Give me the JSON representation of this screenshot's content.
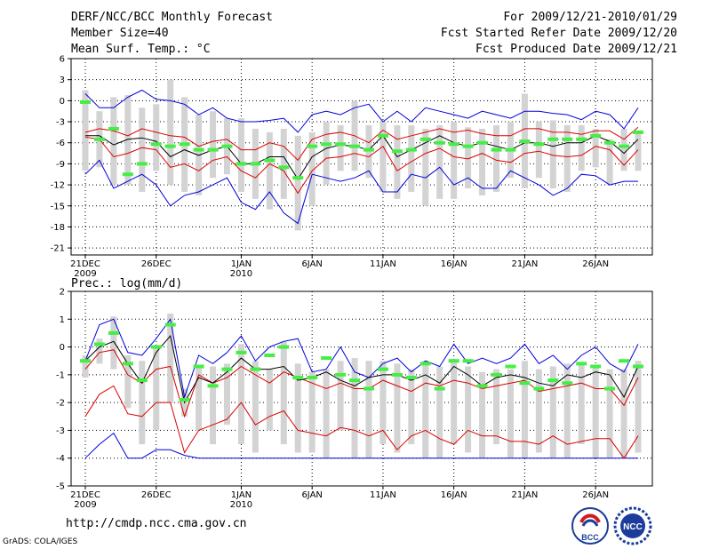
{
  "header": {
    "title": "DERF/NCC/BCC Monthly Forecast",
    "member_size": "Member Size=40",
    "variable": "Mean Surf. Temp.: °C",
    "forecast_period": "For 2009/12/21-2010/01/29",
    "start_date": "Fcst Started Refer Date 2009/12/20",
    "produced_date": "Fcst Produced Date 2009/12/21"
  },
  "footer": {
    "url": "http://cmdp.ncc.cma.gov.cn",
    "grads_credit": "GrADS: COLA/IGES",
    "logo_left_text": "BCC",
    "logo_right_text": "NCC"
  },
  "colors": {
    "box": "#d3d3d3",
    "envelope": "#0000dd",
    "spread": "#dd0000",
    "mean": "#000000",
    "observed": "#44ee44"
  },
  "chart_data": [
    {
      "type": "box-ensemble",
      "title": "",
      "ylabel": "Mean Surf. Temp.: °C",
      "ylim": [
        -22,
        6
      ],
      "yticks": [
        "6",
        "3",
        "0",
        "-3",
        "-6",
        "-9",
        "-12",
        "-15",
        "-18",
        "-21"
      ],
      "ytick_values": [
        6,
        3,
        0,
        -3,
        -6,
        -9,
        -12,
        -15,
        -18,
        -21
      ],
      "xtick_labels": [
        {
          "label": "21DEC",
          "sub": "2009",
          "day": 1
        },
        {
          "label": "26DEC",
          "sub": "",
          "day": 6
        },
        {
          "label": "1JAN",
          "sub": "2010",
          "day": 12
        },
        {
          "label": "6JAN",
          "sub": "",
          "day": 17
        },
        {
          "label": "11JAN",
          "sub": "",
          "day": 22
        },
        {
          "label": "16JAN",
          "sub": "",
          "day": 27
        },
        {
          "label": "21JAN",
          "sub": "",
          "day": 32
        },
        {
          "label": "26JAN",
          "sub": "",
          "day": 37
        }
      ],
      "days": 40,
      "max": [
        1.0,
        -1.0,
        -1.0,
        0.5,
        1.5,
        0.2,
        0.0,
        -0.5,
        -2.0,
        -1.0,
        -2.5,
        -3.0,
        -3.0,
        -2.8,
        -2.5,
        -4.5,
        -2.0,
        -1.5,
        -2.0,
        -1.0,
        -0.5,
        -3.0,
        -1.5,
        -3.0,
        -1.0,
        -1.5,
        -2.0,
        -2.5,
        -1.5,
        -2.0,
        -2.5,
        -1.5,
        -1.5,
        -1.8,
        -2.0,
        -2.7,
        -1.5,
        -2.0,
        -4.0,
        -1.0
      ],
      "box_hi": [
        1.5,
        -1.5,
        0.5,
        0.8,
        -1.0,
        -0.5,
        3.0,
        0.5,
        -2.0,
        -1.5,
        -2.5,
        -2.5,
        -4.0,
        -4.5,
        -4.0,
        -5.0,
        -4.5,
        -3.0,
        -3.5,
        0.0,
        -3.5,
        -3.0,
        -3.5,
        -3.5,
        -4.0,
        -3.5,
        -3.0,
        -3.8,
        -4.0,
        -3.5,
        -3.0,
        1.0,
        -3.0,
        -2.8,
        -3.5,
        -3.5,
        -4.0,
        -5.5,
        -4.0,
        -4.5
      ],
      "p75": [
        -4.5,
        -4.0,
        -4.3,
        -5.0,
        -4.0,
        -4.5,
        -5.0,
        -5.2,
        -6.5,
        -5.8,
        -5.5,
        -7.0,
        -7.0,
        -6.0,
        -6.5,
        -8.5,
        -5.5,
        -4.8,
        -4.5,
        -5.0,
        -6.0,
        -4.2,
        -5.5,
        -5.0,
        -4.5,
        -4.0,
        -4.5,
        -4.2,
        -4.7,
        -5.0,
        -5.0,
        -4.0,
        -4.0,
        -4.5,
        -4.5,
        -4.8,
        -4.3,
        -4.3,
        -5.5,
        -3.8
      ],
      "mean": [
        -5.0,
        -5.0,
        -6.3,
        -5.5,
        -5.3,
        -5.8,
        -8.0,
        -7.0,
        -7.8,
        -7.0,
        -6.5,
        -9.0,
        -9.0,
        -8.0,
        -8.0,
        -11.2,
        -8.0,
        -6.8,
        -6.3,
        -6.5,
        -7.0,
        -5.0,
        -8.0,
        -7.0,
        -6.0,
        -5.0,
        -6.0,
        -6.5,
        -6.0,
        -6.5,
        -7.0,
        -6.0,
        -6.0,
        -6.5,
        -6.0,
        -6.0,
        -5.0,
        -5.8,
        -7.5,
        -5.5
      ],
      "p25": [
        -5.2,
        -5.5,
        -8.0,
        -7.5,
        -6.7,
        -7.0,
        -9.5,
        -9.0,
        -10.0,
        -8.5,
        -8.0,
        -10.0,
        -11.0,
        -9.0,
        -10.0,
        -13.2,
        -10.0,
        -8.2,
        -8.0,
        -7.5,
        -8.0,
        -6.5,
        -10.0,
        -8.7,
        -7.5,
        -6.8,
        -8.0,
        -8.3,
        -7.5,
        -8.5,
        -8.8,
        -7.5,
        -7.2,
        -7.8,
        -8.0,
        -7.8,
        -6.5,
        -7.0,
        -9.2,
        -7.0
      ],
      "box_lo": [
        -10.0,
        -9.5,
        -12.0,
        -12.0,
        -13.0,
        -10.0,
        -12.0,
        -13.0,
        -13.5,
        -11.0,
        -10.5,
        -13.0,
        -14.0,
        -15.5,
        -14.0,
        -18.5,
        -15.0,
        -12.0,
        -10.0,
        -10.0,
        -11.0,
        -13.0,
        -14.0,
        -13.0,
        -15.0,
        -14.0,
        -14.0,
        -12.5,
        -13.5,
        -13.0,
        -11.0,
        -12.5,
        -11.0,
        -12.5,
        -13.0,
        -10.0,
        -9.5,
        -12.0,
        -10.0,
        -10.0
      ],
      "min": [
        -10.5,
        -8.5,
        -12.5,
        -11.5,
        -10.5,
        -12.0,
        -15.0,
        -13.5,
        -13.0,
        -12.0,
        -11.0,
        -14.5,
        -15.5,
        -13.0,
        -16.0,
        -17.5,
        -10.5,
        -11.0,
        -11.5,
        -11.0,
        -10.0,
        -13.0,
        -13.0,
        -10.5,
        -11.0,
        -9.5,
        -12.0,
        -11.0,
        -12.5,
        -12.5,
        -10.0,
        -11.0,
        -12.0,
        -13.5,
        -12.5,
        -10.5,
        -10.7,
        -12.0,
        -11.5,
        -11.5
      ],
      "observed": [
        -0.2,
        -5.5,
        -4.0,
        -10.5,
        -9.0,
        -6.2,
        -6.5,
        -6.2,
        -7.0,
        -7.0,
        -6.5,
        -9.0,
        -9.0,
        -8.5,
        -9.5,
        -11.0,
        -6.5,
        -6.2,
        -6.2,
        -6.5,
        -7.0,
        -5.0,
        -7.2,
        -7.0,
        -5.5,
        -6.0,
        -6.2,
        -6.5,
        -6.0,
        -7.0,
        -7.0,
        -5.8,
        -6.2,
        -5.5,
        -5.5,
        -5.5,
        -5.0,
        -6.0,
        -6.5,
        -4.5
      ],
      "observed_days": [
        1,
        2,
        3,
        4,
        5,
        6,
        7,
        8,
        9,
        10,
        11,
        12,
        13,
        14,
        15,
        16,
        17,
        18,
        19,
        20,
        21,
        22,
        23,
        24,
        25,
        26,
        27,
        28,
        29,
        30,
        31,
        32,
        33,
        34,
        35,
        36,
        37,
        38,
        39,
        40
      ]
    },
    {
      "type": "box-ensemble",
      "title": "",
      "ylabel": "Prec.: log(mm/d)",
      "ylim": [
        -5,
        2
      ],
      "yticks": [
        "2",
        "1",
        "0",
        "-1",
        "-2",
        "-3",
        "-4",
        "-5"
      ],
      "ytick_values": [
        2,
        1,
        0,
        -1,
        -2,
        -3,
        -4,
        -5
      ],
      "xtick_labels": [
        {
          "label": "21DEC",
          "sub": "2009",
          "day": 1
        },
        {
          "label": "26DEC",
          "sub": "",
          "day": 6
        },
        {
          "label": "1JAN",
          "sub": "2010",
          "day": 12
        },
        {
          "label": "6JAN",
          "sub": "",
          "day": 17
        },
        {
          "label": "11JAN",
          "sub": "",
          "day": 22
        },
        {
          "label": "16JAN",
          "sub": "",
          "day": 27
        },
        {
          "label": "21JAN",
          "sub": "",
          "day": 32
        },
        {
          "label": "26JAN",
          "sub": "",
          "day": 37
        }
      ],
      "days": 40,
      "max": [
        -0.5,
        0.8,
        1.0,
        -0.2,
        -0.3,
        0.3,
        1.0,
        -1.8,
        -0.3,
        -0.6,
        -0.2,
        0.4,
        -0.5,
        0.0,
        0.2,
        0.3,
        -0.9,
        -0.8,
        0.0,
        -0.9,
        -1.1,
        -0.6,
        -0.4,
        -0.9,
        -0.5,
        -0.7,
        0.1,
        -0.6,
        -0.4,
        -0.6,
        -0.4,
        0.1,
        -0.6,
        -0.3,
        -0.8,
        -0.3,
        0.0,
        -0.6,
        -0.9,
        0.1
      ],
      "box_hi": [
        -0.3,
        0.3,
        1.1,
        -0.3,
        -0.5,
        0.0,
        1.2,
        -1.5,
        -0.7,
        -0.7,
        -0.6,
        0.1,
        -0.5,
        -0.8,
        0.2,
        -0.6,
        -0.9,
        -0.8,
        -0.5,
        -0.4,
        -0.5,
        -0.5,
        -0.6,
        -0.8,
        -0.5,
        -0.7,
        -0.5,
        -0.7,
        -0.9,
        -0.8,
        -0.8,
        -0.5,
        -0.8,
        -0.7,
        -0.6,
        -0.6,
        -0.7,
        -0.8,
        -0.8,
        -0.5
      ],
      "p75": [
        -0.8,
        -0.2,
        -0.1,
        -1.0,
        -1.3,
        -0.8,
        -0.7,
        -2.5,
        -1.0,
        -1.3,
        -1.1,
        -0.7,
        -1.0,
        -1.3,
        -0.9,
        -1.1,
        -1.3,
        -1.5,
        -1.3,
        -1.5,
        -1.5,
        -1.2,
        -1.4,
        -1.6,
        -1.3,
        -1.4,
        -1.2,
        -1.3,
        -1.5,
        -1.4,
        -1.3,
        -1.2,
        -1.6,
        -1.5,
        -1.4,
        -1.3,
        -1.5,
        -1.5,
        -2.1,
        -1.1
      ],
      "mean": [
        -0.5,
        0.0,
        0.2,
        -0.6,
        -1.3,
        -0.2,
        0.4,
        -2.0,
        -1.1,
        -1.3,
        -0.9,
        -0.4,
        -0.8,
        -0.8,
        -0.7,
        -1.2,
        -1.1,
        -0.9,
        -1.2,
        -1.4,
        -1.1,
        -1.0,
        -1.0,
        -1.2,
        -1.0,
        -1.3,
        -0.7,
        -1.0,
        -1.4,
        -1.1,
        -1.0,
        -1.1,
        -1.3,
        -1.4,
        -1.0,
        -1.1,
        -0.9,
        -1.0,
        -1.8,
        -0.7
      ],
      "p25": [
        -2.5,
        -1.7,
        -1.4,
        -2.4,
        -2.5,
        -2.0,
        -2.0,
        -3.8,
        -3.0,
        -2.8,
        -2.6,
        -2.0,
        -2.8,
        -2.5,
        -2.3,
        -3.0,
        -3.1,
        -3.2,
        -2.9,
        -3.0,
        -3.2,
        -3.0,
        -3.7,
        -3.2,
        -3.0,
        -3.3,
        -3.5,
        -3.0,
        -3.2,
        -3.2,
        -3.4,
        -3.4,
        -3.5,
        -3.2,
        -3.5,
        -3.4,
        -3.3,
        -3.3,
        -4.0,
        -3.2
      ],
      "box_lo": [
        -1.1,
        -0.6,
        -0.8,
        -2.2,
        -3.5,
        -3.0,
        -2.0,
        -2.5,
        -3.0,
        -3.5,
        -2.8,
        -3.5,
        -3.8,
        -3.0,
        -3.5,
        -3.8,
        -3.8,
        -4.0,
        -3.0,
        -4.0,
        -4.0,
        -3.5,
        -3.8,
        -3.5,
        -4.0,
        -4.0,
        -3.5,
        -3.8,
        -4.0,
        -3.5,
        -4.0,
        -4.0,
        -3.8,
        -4.0,
        -4.0,
        -3.5,
        -4.0,
        -4.0,
        -4.0,
        -3.8
      ],
      "min": [
        -4.0,
        -3.5,
        -3.1,
        -4.0,
        -4.0,
        -3.7,
        -3.7,
        -3.9,
        -4.0,
        -4.0,
        -4.0,
        -4.0,
        -4.0,
        -4.0,
        -4.0,
        -4.0,
        -4.0,
        -4.0,
        -4.0,
        -4.0,
        -4.0,
        -4.0,
        -4.0,
        -4.0,
        -4.0,
        -4.0,
        -4.0,
        -4.0,
        -4.0,
        -4.0,
        -4.0,
        -4.0,
        -4.0,
        -4.0,
        -4.0,
        -4.0,
        -4.0,
        -4.0,
        -4.0,
        -4.0
      ],
      "observed": [
        -0.5,
        0.1,
        0.5,
        -0.6,
        -1.2,
        0.0,
        0.8,
        -1.9,
        -0.7,
        -1.4,
        -0.8,
        -0.2,
        -0.8,
        -0.3,
        0.0,
        -1.1,
        -1.1,
        -0.4,
        -1.0,
        -1.2,
        -1.5,
        -0.8,
        -1.0,
        -1.1,
        -0.6,
        -1.5,
        -0.5,
        -0.5,
        -1.4,
        -1.0,
        -0.7,
        -1.3,
        -1.5,
        -1.2,
        -1.3,
        -0.6,
        -0.7,
        -1.5,
        -0.5,
        -0.7
      ],
      "observed_days": [
        1,
        2,
        3,
        4,
        5,
        6,
        7,
        8,
        9,
        10,
        11,
        12,
        13,
        14,
        15,
        16,
        17,
        18,
        19,
        20,
        21,
        22,
        23,
        24,
        25,
        26,
        27,
        28,
        29,
        30,
        31,
        32,
        33,
        34,
        35,
        36,
        37,
        38,
        39,
        40
      ]
    }
  ]
}
